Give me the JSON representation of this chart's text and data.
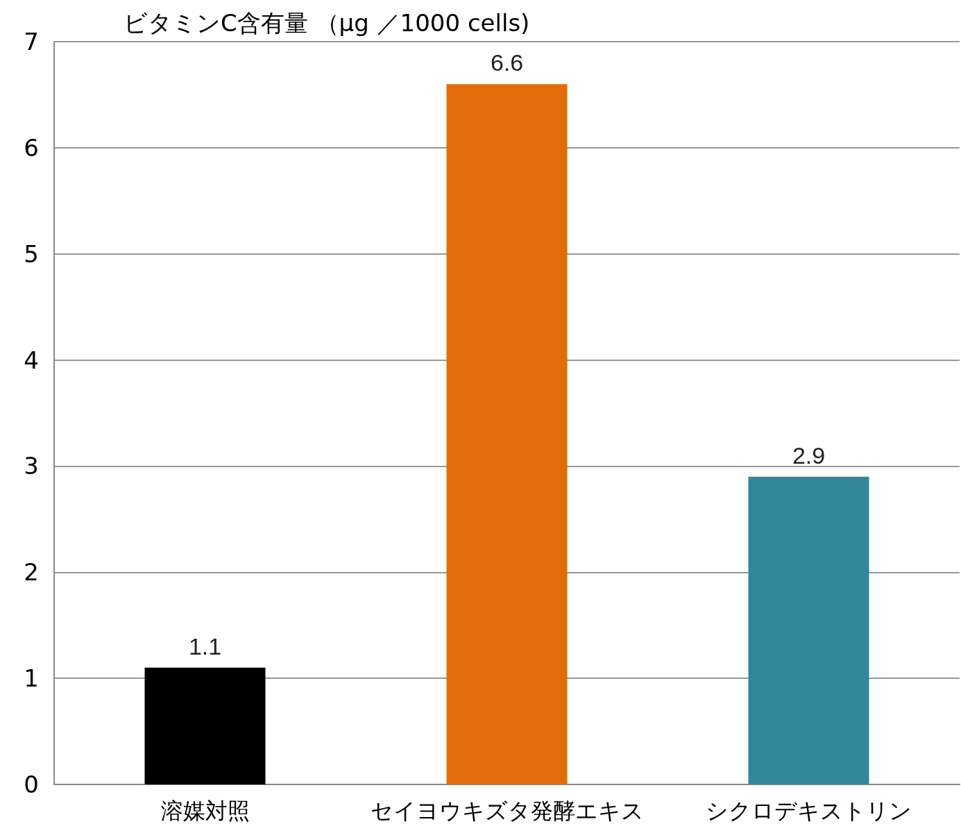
{
  "chart_data": {
    "type": "bar",
    "ylabel": "ビタミンC含有量 （μg ／1000 cells)",
    "categories": [
      "溶媒対照",
      "セイヨウキズタ発酵エキス",
      "シクロデキストリン"
    ],
    "values": [
      1.1,
      6.6,
      2.9
    ],
    "colors": [
      "#000000",
      "#e36c0a",
      "#31869c"
    ],
    "ylim": [
      0,
      7
    ],
    "yticks": [
      0,
      1,
      2,
      3,
      4,
      5,
      6,
      7
    ],
    "grid": "y",
    "data_labels": true
  }
}
